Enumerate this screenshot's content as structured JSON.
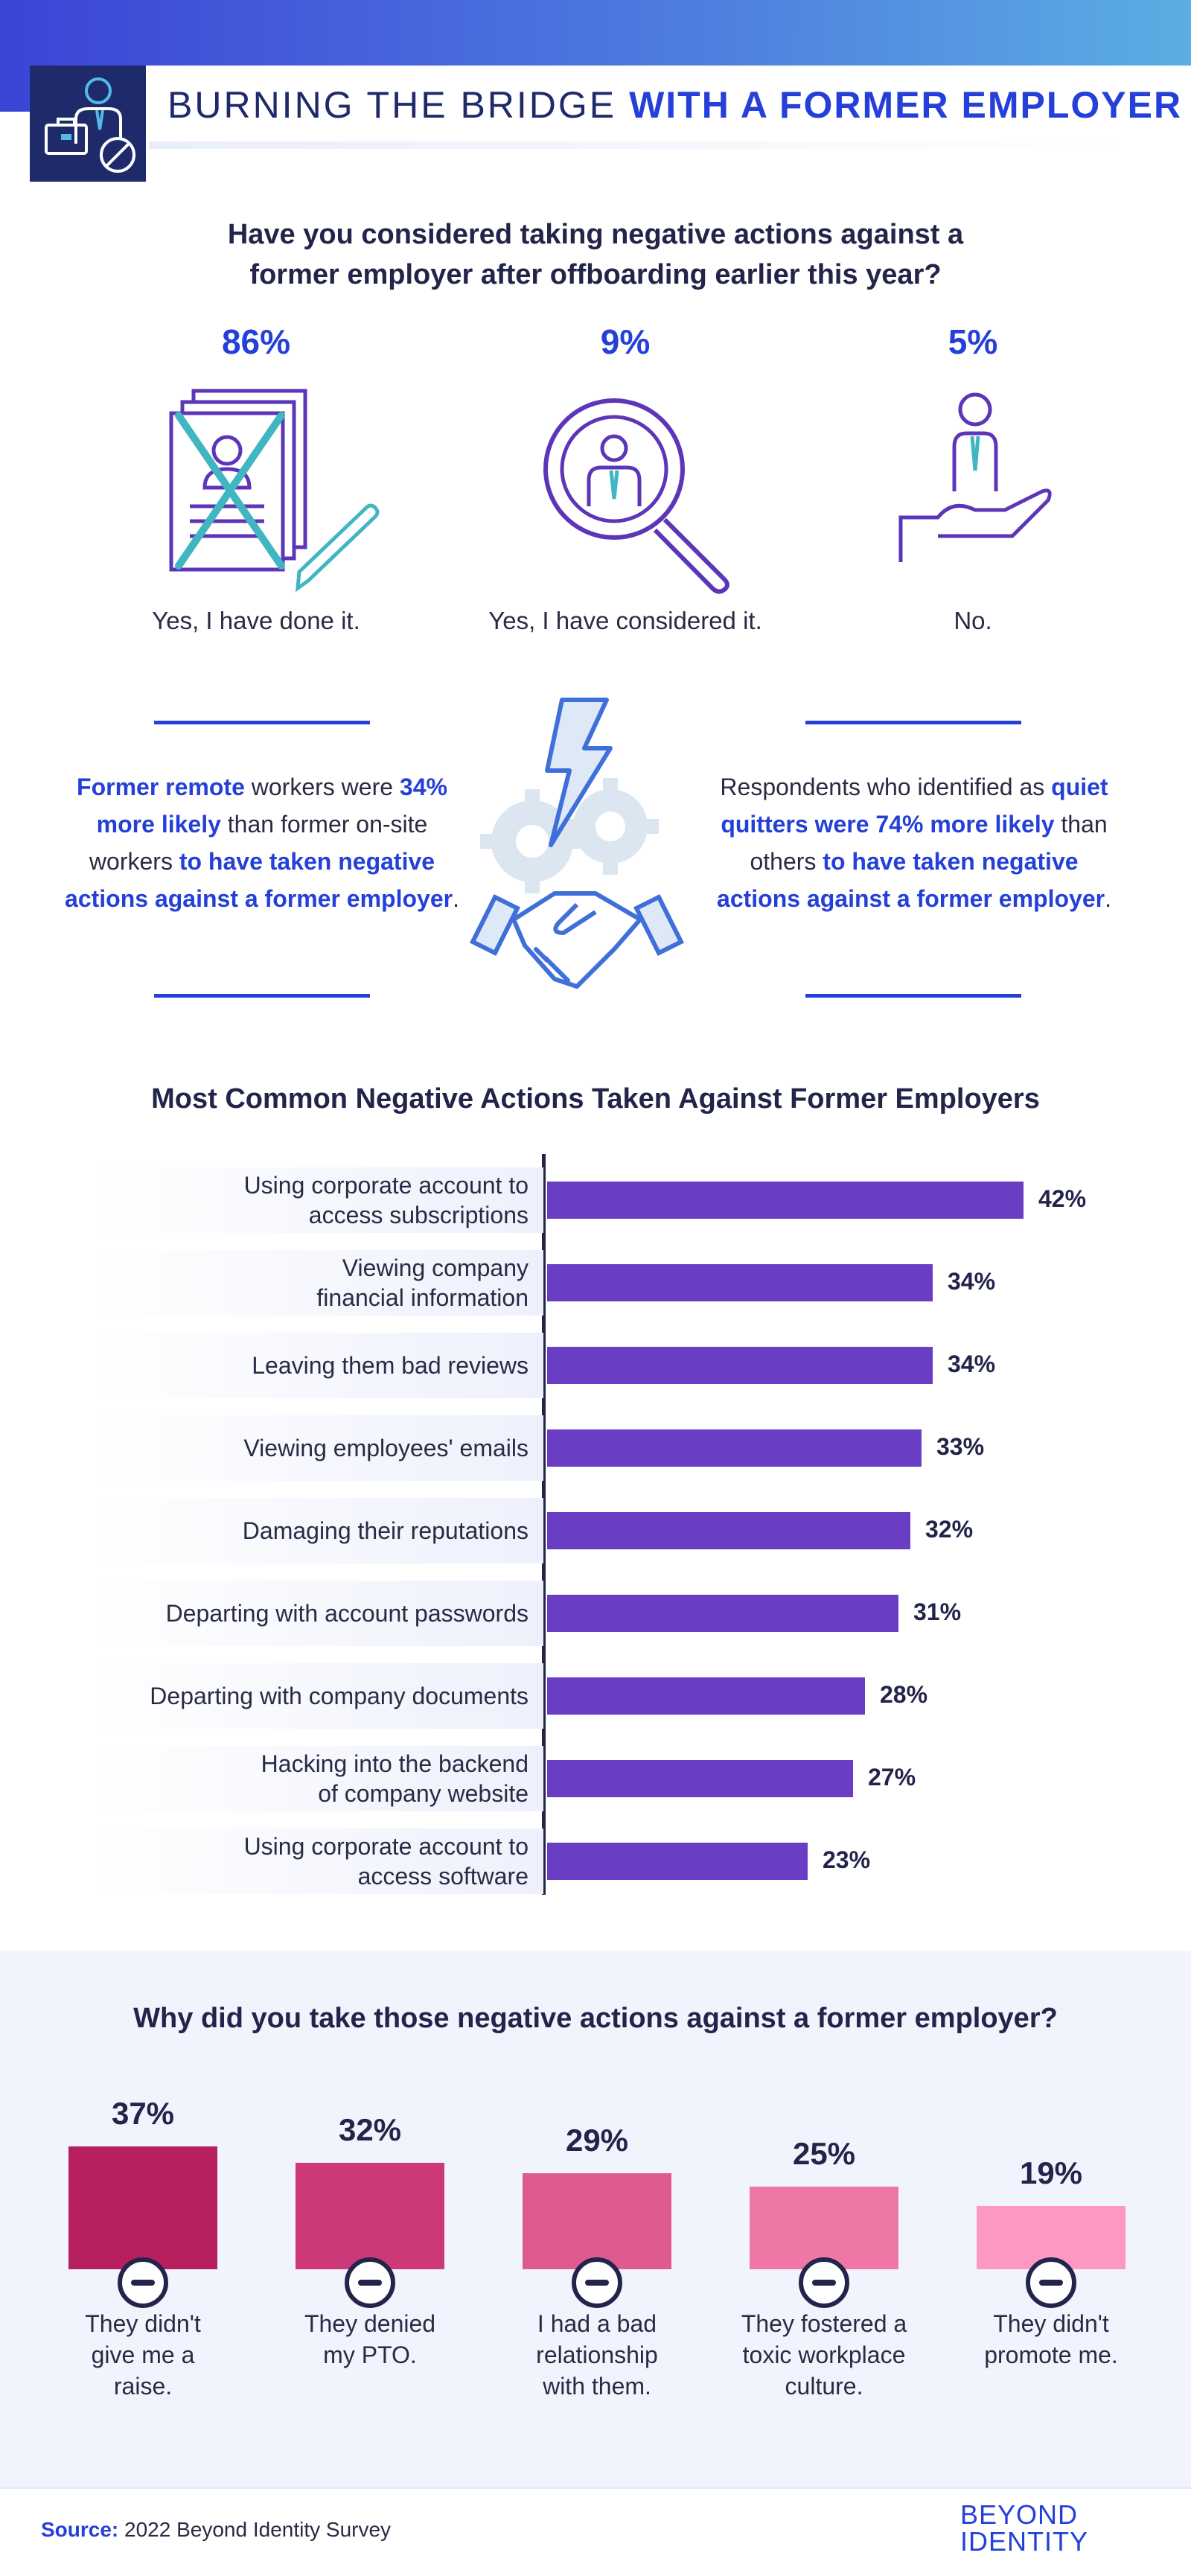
{
  "header": {
    "title_regular": "BURNING THE BRIDGE",
    "title_bold": "WITH A FORMER EMPLOYER",
    "logo_icon": "employee-blocked-icon"
  },
  "survey1": {
    "question_line1": "Have you considered taking negative actions against a",
    "question_line2": "former employer after offboarding earlier this year?",
    "answers": [
      {
        "percent": "86%",
        "label": "Yes, I have done it.",
        "icon": "crossed-document-icon"
      },
      {
        "percent": "9%",
        "label": "Yes, I have considered it.",
        "icon": "magnifier-person-icon"
      },
      {
        "percent": "5%",
        "label": "No.",
        "icon": "hand-person-icon"
      }
    ]
  },
  "stats": {
    "left": {
      "p1": "Former remote",
      "p2": " workers were ",
      "p3": "34% more likely",
      "p4": " than former on-site workers ",
      "p5": "to have taken negative actions against a former employer",
      "p6": "."
    },
    "right": {
      "p1": "Respondents who identified as ",
      "p2": "quiet quitters were 74% more likely",
      "p3": " than others ",
      "p4": "to have taken negative actions against a former employer",
      "p5": "."
    },
    "center_icon": "handshake-lightning-gears-icon"
  },
  "colors": {
    "brand_blue": "#2540d9",
    "navy": "#22244a",
    "bar_purple": "#6a3ec4",
    "pink_scale": [
      "#b81f5f",
      "#cc3878",
      "#df5a90",
      "#ef77a6",
      "#fd97c3"
    ]
  },
  "chart_data": [
    {
      "type": "bar",
      "orientation": "horizontal",
      "title": "Most Common Negative Actions Taken Against Former Employers",
      "categories": [
        [
          "Using corporate account to",
          "access subscriptions"
        ],
        [
          "Viewing company",
          "financial information"
        ],
        [
          "Leaving them bad reviews"
        ],
        [
          "Viewing employees' emails"
        ],
        [
          "Damaging their reputations"
        ],
        [
          "Departing with account passwords"
        ],
        [
          "Departing with company documents"
        ],
        [
          "Hacking into the backend",
          "of company website"
        ],
        [
          "Using corporate account to",
          "access software"
        ]
      ],
      "values": [
        42,
        34,
        34,
        33,
        32,
        31,
        28,
        27,
        23
      ],
      "value_labels": [
        "42%",
        "34%",
        "34%",
        "33%",
        "32%",
        "31%",
        "28%",
        "27%",
        "23%"
      ],
      "xlim": [
        0,
        42
      ],
      "grid": false
    },
    {
      "type": "bar",
      "orientation": "vertical",
      "title": "Why did you take those negative actions against a former employer?",
      "categories": [
        [
          "They didn't",
          "give me a",
          "raise."
        ],
        [
          "They denied",
          "my PTO."
        ],
        [
          "I had a bad",
          "relationship",
          "with them."
        ],
        [
          "They fostered a",
          "toxic workplace",
          "culture."
        ],
        [
          "They didn't",
          "promote me."
        ]
      ],
      "values": [
        37,
        32,
        29,
        25,
        19
      ],
      "value_labels": [
        "37%",
        "32%",
        "29%",
        "25%",
        "19%"
      ],
      "ylim": [
        0,
        37
      ],
      "grid": false
    }
  ],
  "footer": {
    "source_label": "Source:",
    "source_text": "2022 Beyond Identity Survey",
    "brand_line1": "BEYOND",
    "brand_line2": "IDENTITY"
  }
}
